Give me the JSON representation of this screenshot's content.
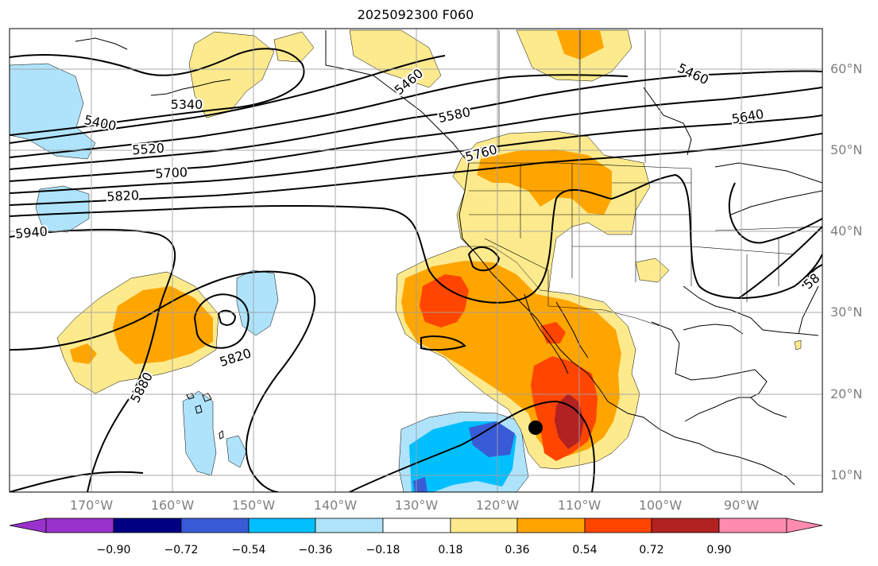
{
  "title": "2025092300 F060",
  "lat_labels": [
    "60°N",
    "50°N",
    "40°N",
    "30°N",
    "20°N",
    "10°N"
  ],
  "lon_labels": [
    "170°W",
    "160°W",
    "150°W",
    "140°W",
    "130°W",
    "120°W",
    "110°W",
    "100°W",
    "90°W"
  ],
  "contour_labels": [
    "5340",
    "5400",
    "5460",
    "5460",
    "5520",
    "5580",
    "5640",
    "5700",
    "5820",
    "5820",
    "5880",
    "5940",
    "5760",
    "58"
  ],
  "colorbar": {
    "ticks": [
      "−0.90",
      "−0.72",
      "−0.54",
      "−0.36",
      "−0.18",
      "0.18",
      "0.36",
      "0.54",
      "0.72",
      "0.90"
    ],
    "colors": [
      "#9932cc",
      "#000080",
      "#3a5bd6",
      "#00bfff",
      "#aee3fb",
      "#ffffff",
      "#fdea8d",
      "#ffa500",
      "#ff4500",
      "#b22222",
      "#ff8caf"
    ]
  },
  "marker": "storm-center-dot"
}
